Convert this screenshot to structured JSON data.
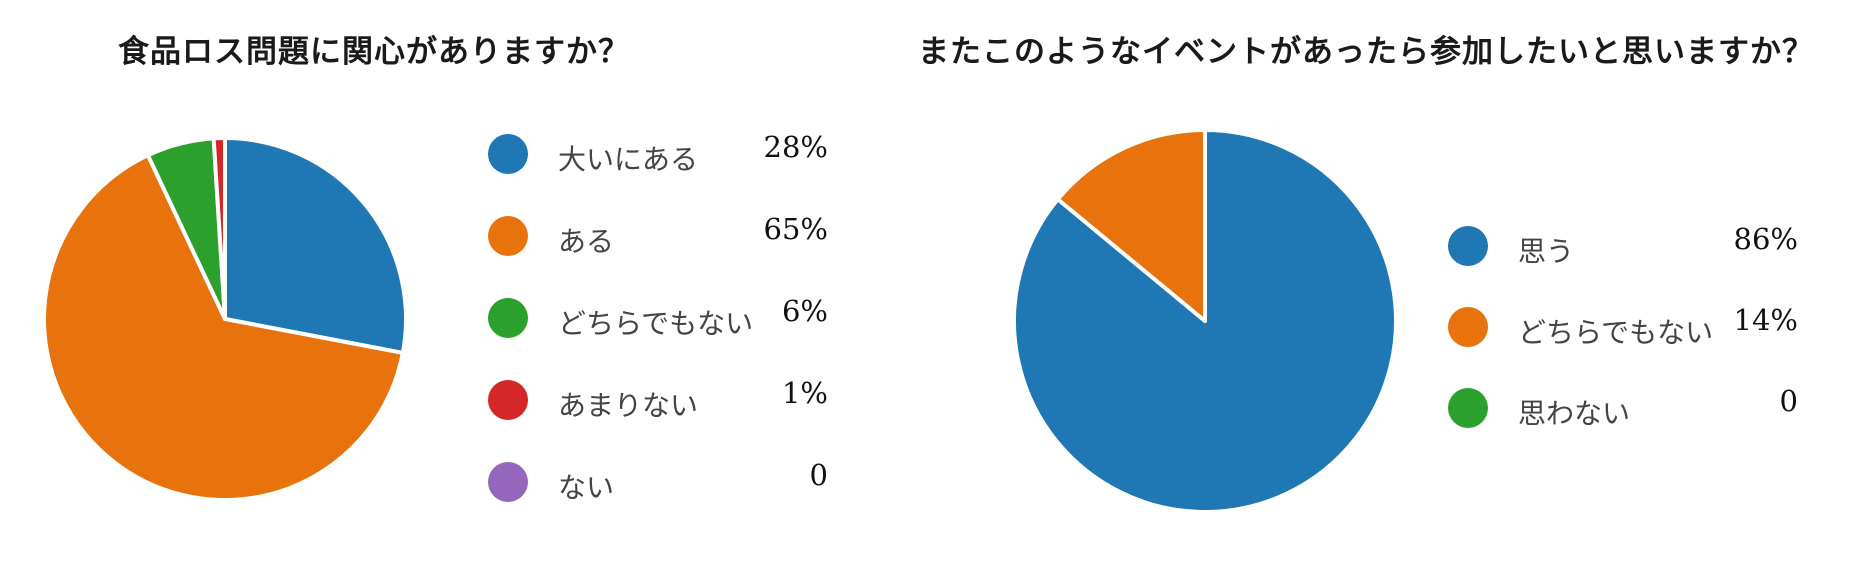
{
  "chart_data": [
    {
      "type": "pie",
      "title": "食品ロス問題に関心がありますか？",
      "categories": [
        "大いにある",
        "ある",
        "どちらでもない",
        "あまりない",
        "ない"
      ],
      "values": [
        28,
        65,
        6,
        1,
        0
      ],
      "value_labels": [
        "28%",
        "65%",
        "6%",
        "1%",
        "0"
      ],
      "colors": [
        "#1f77b4",
        "#e8720c",
        "#2ca02c",
        "#d62728",
        "#9467bd"
      ],
      "legend_position": "right"
    },
    {
      "type": "pie",
      "title": "またこのようなイベントがあったら参加したいと思いますか？",
      "categories": [
        "思う",
        "どちらでもない",
        "思わない"
      ],
      "values": [
        86,
        14,
        0
      ],
      "value_labels": [
        "86%",
        "14%",
        "0"
      ],
      "colors": [
        "#1f77b4",
        "#e8720c",
        "#2ca02c"
      ],
      "legend_position": "right"
    }
  ]
}
